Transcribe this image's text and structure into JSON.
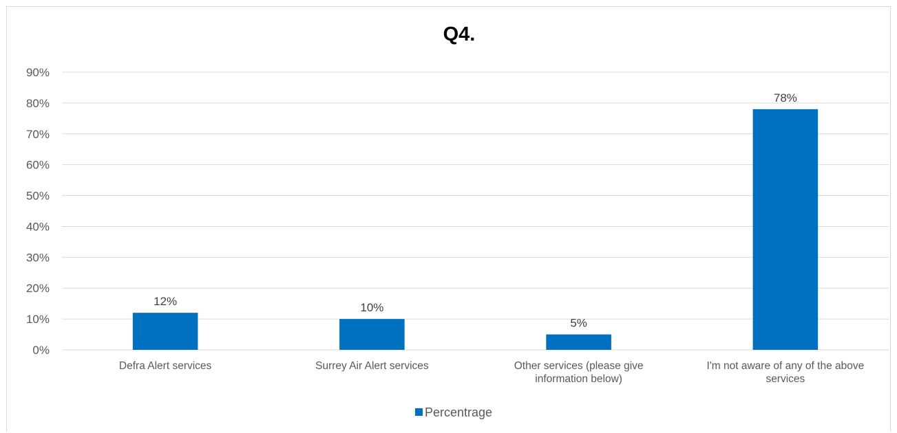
{
  "chart_data": {
    "type": "bar",
    "title": "Q4.",
    "categories": [
      [
        "Defra Alert services"
      ],
      [
        "Surrey Air Alert services"
      ],
      [
        "Other services (please give",
        "information below)"
      ],
      [
        "I'm not aware of any of the above",
        "services"
      ]
    ],
    "series": [
      {
        "name": "Percentrage",
        "values": [
          12,
          10,
          5,
          78
        ],
        "labels": [
          "12%",
          "10%",
          "5%",
          "78%"
        ],
        "color": "#0070c0"
      }
    ],
    "ylim": [
      0,
      90
    ],
    "yticks": [
      "0%",
      "10%",
      "20%",
      "30%",
      "40%",
      "50%",
      "60%",
      "70%",
      "80%",
      "90%"
    ],
    "grid": true,
    "legend_position": "bottom",
    "gridline_color": "#d9d9d9"
  }
}
